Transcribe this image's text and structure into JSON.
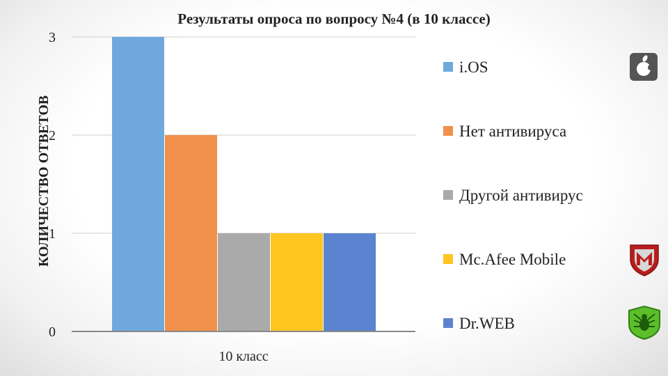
{
  "chart_data": {
    "type": "bar",
    "title": "Результаты опроса по вопросу №4 (в 10 классе)",
    "ylabel": "КОЛИЧЕСТВО ОТВЕТОВ",
    "xlabel": "",
    "categories": [
      "10 класс"
    ],
    "ylim": [
      0,
      3
    ],
    "yticks": [
      "0",
      "1",
      "2",
      "3"
    ],
    "grid": true,
    "legend_position": "right",
    "series": [
      {
        "name": "i.OS",
        "values": [
          3
        ],
        "color": "#6fa8dc",
        "icon": "apple-icon"
      },
      {
        "name": "Нет антивируса",
        "values": [
          2
        ],
        "color": "#f0904a",
        "icon": ""
      },
      {
        "name": "Другой антивирус",
        "values": [
          1
        ],
        "color": "#aaaaaa",
        "icon": ""
      },
      {
        "name": "Mc.Afee Mobile",
        "values": [
          1
        ],
        "color": "#ffc520",
        "icon": "mcafee-shield-icon"
      },
      {
        "name": "Dr.WEB",
        "values": [
          1
        ],
        "color": "#5b83cf",
        "icon": "drweb-spider-icon"
      }
    ]
  }
}
